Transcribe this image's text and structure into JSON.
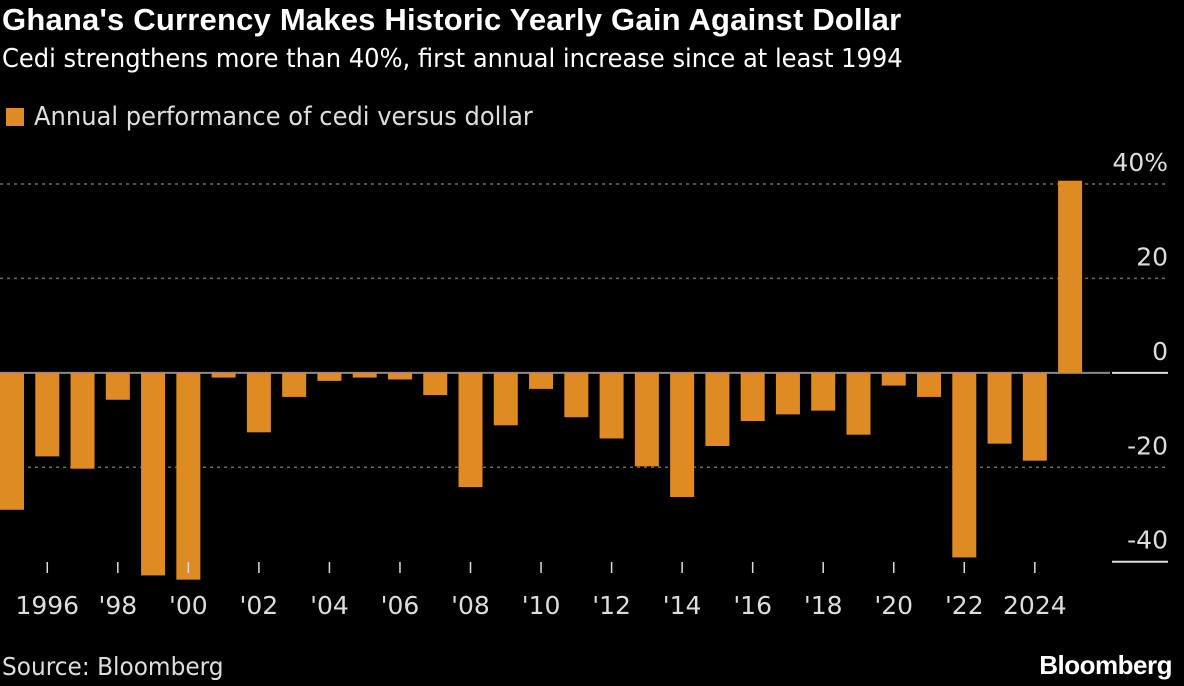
{
  "chart_data": {
    "type": "bar",
    "title": "Ghana's Currency Makes Historic Yearly Gain Against Dollar",
    "subtitle": "Cedi strengthens more than 40%, first annual increase since at least 1994",
    "legend": "top-left",
    "series": [
      {
        "name": "Annual performance of cedi versus dollar",
        "color": "#DE8B24",
        "values": [
          -29.0,
          -17.7,
          -20.3,
          -5.7,
          -42.9,
          -43.8,
          -1.0,
          -12.6,
          -5.1,
          -1.7,
          -1.0,
          -1.4,
          -4.7,
          -24.2,
          -11.1,
          -3.4,
          -9.4,
          -13.9,
          -19.8,
          -26.3,
          -15.5,
          -10.2,
          -8.8,
          -8.0,
          -13.1,
          -2.7,
          -5.1,
          -39.1,
          -15.0,
          -18.6,
          40.7
        ]
      }
    ],
    "categories": [
      1995,
      1996,
      1997,
      1998,
      1999,
      2000,
      2001,
      2002,
      2003,
      2004,
      2005,
      2006,
      2007,
      2008,
      2009,
      2010,
      2011,
      2012,
      2013,
      2014,
      2015,
      2016,
      2017,
      2018,
      2019,
      2020,
      2021,
      2022,
      2023,
      2024,
      2025
    ],
    "x_tick_labels": [
      {
        "year": 1996,
        "label": "1996"
      },
      {
        "year": 1998,
        "label": "'98"
      },
      {
        "year": 2000,
        "label": "'00"
      },
      {
        "year": 2002,
        "label": "'02"
      },
      {
        "year": 2004,
        "label": "'04"
      },
      {
        "year": 2006,
        "label": "'06"
      },
      {
        "year": 2008,
        "label": "'08"
      },
      {
        "year": 2010,
        "label": "'10"
      },
      {
        "year": 2012,
        "label": "'12"
      },
      {
        "year": 2014,
        "label": "'14"
      },
      {
        "year": 2016,
        "label": "'16"
      },
      {
        "year": 2018,
        "label": "'18"
      },
      {
        "year": 2020,
        "label": "'20"
      },
      {
        "year": 2022,
        "label": "'22"
      },
      {
        "year": 2024,
        "label": "2024"
      }
    ],
    "y_ticks": [
      {
        "value": 40,
        "label": "40%"
      },
      {
        "value": 20,
        "label": "20"
      },
      {
        "value": 0,
        "label": "0"
      },
      {
        "value": -20,
        "label": "-20"
      },
      {
        "value": -40,
        "label": "-40"
      }
    ],
    "ylim": [
      -40,
      40
    ],
    "y_axis_position": "right",
    "grid": true,
    "xlabel": "",
    "ylabel": ""
  },
  "footer": {
    "source": "Source: Bloomberg",
    "logo": "Bloomberg"
  }
}
